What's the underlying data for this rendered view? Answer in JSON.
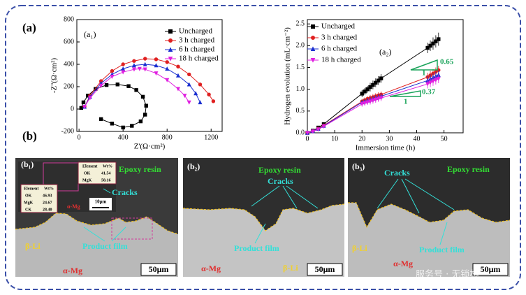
{
  "panel_labels": [
    "(a)",
    "(b)"
  ],
  "chart_data": [
    {
      "type": "scatter",
      "label": "(a₁)",
      "xlabel": "Z'(Ω·cm²)",
      "ylabel": "-Z''(Ω·cm²)",
      "xlim": [
        -20,
        1300
      ],
      "ylim": [
        -200,
        800
      ],
      "xticks": [
        0,
        400,
        800,
        1200
      ],
      "yticks": [
        -200,
        0,
        200,
        400,
        600,
        800
      ],
      "series": [
        {
          "name": "Uncharged",
          "color": "#000000",
          "marker": "square",
          "x": [
            20,
            40,
            80,
            150,
            250,
            350,
            450,
            520,
            580,
            610,
            600,
            560,
            480,
            400,
            300,
            200
          ],
          "values": [
            10,
            60,
            120,
            180,
            215,
            220,
            205,
            170,
            110,
            30,
            -50,
            -110,
            -150,
            -165,
            -130,
            -90
          ]
        },
        {
          "name": "3 h charged",
          "color": "#e02020",
          "marker": "circle",
          "x": [
            50,
            100,
            200,
            300,
            400,
            500,
            600,
            700,
            800,
            900,
            1000,
            1100,
            1180,
            1220
          ],
          "values": [
            20,
            120,
            250,
            340,
            400,
            430,
            450,
            445,
            420,
            380,
            310,
            220,
            130,
            70
          ]
        },
        {
          "name": "6 h charged",
          "color": "#1a2fd0",
          "marker": "triangle",
          "x": [
            50,
            100,
            200,
            300,
            400,
            500,
            600,
            700,
            800,
            900,
            1000,
            1060,
            1100
          ],
          "values": [
            20,
            110,
            230,
            310,
            360,
            390,
            400,
            390,
            360,
            300,
            220,
            140,
            60
          ]
        },
        {
          "name": "18 h charged",
          "color": "#e020e0",
          "marker": "down",
          "x": [
            50,
            100,
            200,
            300,
            400,
            500,
            550,
            600,
            700,
            800,
            900,
            960,
            1000
          ],
          "values": [
            20,
            100,
            210,
            290,
            330,
            355,
            360,
            355,
            320,
            260,
            180,
            120,
            60
          ]
        }
      ]
    },
    {
      "type": "line",
      "label": "(a₂)",
      "xlabel": "Immersion time (h)",
      "ylabel": "Hydrogen evolution (mL·cm⁻²)",
      "xlim": [
        0,
        57
      ],
      "ylim": [
        0,
        2.6
      ],
      "xticks": [
        0,
        10,
        20,
        30,
        40,
        50
      ],
      "yticks": [
        {
          "value": 0,
          "label": "0.0"
        },
        {
          "value": 0.5,
          "label": "0.5"
        },
        {
          "value": 1,
          "label": "1.0"
        },
        {
          "value": 1.5,
          "label": "1.5"
        },
        {
          "value": 2,
          "label": "2.0"
        },
        {
          "value": 2.5,
          "label": "2.5"
        }
      ],
      "x": [
        0,
        2,
        4,
        6,
        20,
        21,
        22,
        23,
        24,
        25,
        26,
        27,
        44,
        45,
        46,
        47,
        48
      ],
      "series": [
        {
          "name": "Uncharged",
          "color": "#000000",
          "marker": "square",
          "values": [
            0,
            0.05,
            0.12,
            0.2,
            0.9,
            0.95,
            1.0,
            1.05,
            1.1,
            1.15,
            1.2,
            1.25,
            1.95,
            2.0,
            2.05,
            2.1,
            2.15
          ],
          "errors": [
            0,
            0.02,
            0.03,
            0.03,
            0.08,
            0.08,
            0.08,
            0.1,
            0.1,
            0.1,
            0.1,
            0.1,
            0.12,
            0.12,
            0.14,
            0.14,
            0.15
          ]
        },
        {
          "name": "3 h charged",
          "color": "#e02020",
          "marker": "circle",
          "values": [
            0,
            0.04,
            0.1,
            0.17,
            0.72,
            0.75,
            0.78,
            0.8,
            0.82,
            0.84,
            0.86,
            0.88,
            1.28,
            1.32,
            1.36,
            1.4,
            1.44
          ],
          "errors": [
            0,
            0.02,
            0.02,
            0.03,
            0.06,
            0.06,
            0.06,
            0.07,
            0.07,
            0.07,
            0.07,
            0.07,
            0.1,
            0.1,
            0.1,
            0.1,
            0.1
          ]
        },
        {
          "name": "6 h charged",
          "color": "#1a2fd0",
          "marker": "triangle",
          "values": [
            0,
            0.04,
            0.09,
            0.16,
            0.7,
            0.72,
            0.74,
            0.76,
            0.78,
            0.8,
            0.82,
            0.84,
            1.2,
            1.24,
            1.27,
            1.3,
            1.33
          ],
          "errors": [
            0,
            0.02,
            0.02,
            0.03,
            0.06,
            0.06,
            0.06,
            0.07,
            0.07,
            0.07,
            0.07,
            0.07,
            0.1,
            0.1,
            0.1,
            0.1,
            0.1
          ]
        },
        {
          "name": "18 h charged",
          "color": "#e020e0",
          "marker": "down",
          "values": [
            0,
            0.03,
            0.08,
            0.15,
            0.66,
            0.68,
            0.7,
            0.72,
            0.74,
            0.76,
            0.78,
            0.8,
            1.12,
            1.15,
            1.18,
            1.21,
            1.24
          ],
          "errors": [
            0,
            0.02,
            0.02,
            0.03,
            0.06,
            0.06,
            0.06,
            0.07,
            0.07,
            0.07,
            0.07,
            0.07,
            0.1,
            0.1,
            0.1,
            0.1,
            0.1
          ]
        }
      ],
      "annotations": [
        "0.65",
        "1",
        "0.37",
        "1"
      ]
    }
  ],
  "micrographs": [
    {
      "label": "(b₁)",
      "labels": [
        "Epoxy resin",
        "Cracks",
        "Product film",
        "β-Li",
        "α-Mg",
        "50μm"
      ],
      "table1": {
        "header": [
          "Element",
          "Wt%"
        ],
        "rows": [
          [
            "OK",
            "41.54"
          ],
          [
            "MgK",
            "58.16"
          ]
        ]
      },
      "table2": {
        "header": [
          "Element",
          "Wt%"
        ],
        "rows": [
          [
            "OK",
            "46.93"
          ],
          [
            "MgK",
            "24.67"
          ],
          [
            "CK",
            "28.40"
          ]
        ]
      },
      "scale_inset": "10μm",
      "inset_label": "α-Mg"
    },
    {
      "label": "(b₂)",
      "labels": [
        "Epoxy resin",
        "Cracks",
        "Product film",
        "α-Mg",
        "β-Li",
        "50μm"
      ]
    },
    {
      "label": "(b₃)",
      "labels": [
        "Cracks",
        "Epoxy resin",
        "Product film",
        "β-Li",
        "α-Mg",
        "50μm"
      ]
    }
  ],
  "watermark": "服务号 · 无锁林"
}
